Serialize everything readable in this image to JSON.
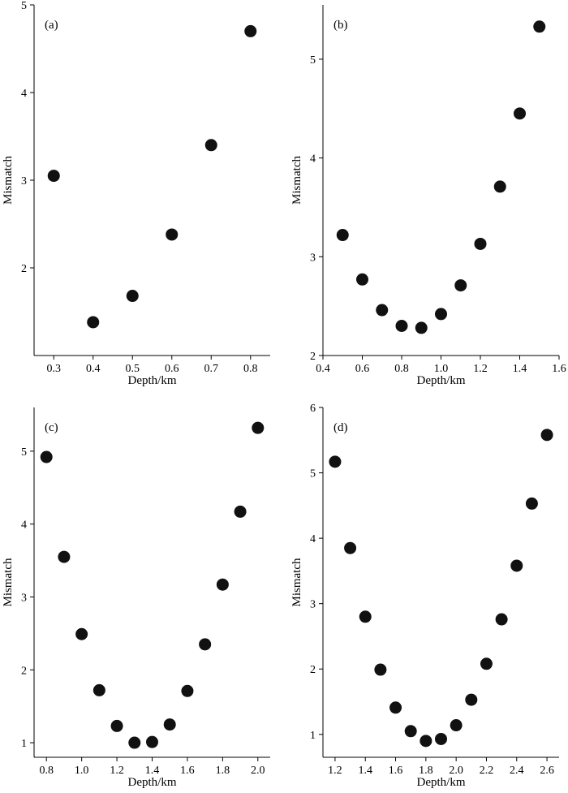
{
  "chart_data": [
    {
      "type": "scatter",
      "panel_label": "(a)",
      "xlabel": "Depth/km",
      "ylabel": "Mismatch",
      "xlim": [
        0.25,
        0.85
      ],
      "ylim": [
        1.0,
        5.0
      ],
      "xticks": [
        0.3,
        0.4,
        0.5,
        0.6,
        0.7,
        0.8
      ],
      "xtick_labels": [
        "0.3",
        "0.4",
        "0.5",
        "0.6",
        "0.7",
        "0.8"
      ],
      "yticks": [
        2,
        3,
        4,
        5
      ],
      "ytick_labels": [
        "2",
        "3",
        "4",
        "5"
      ],
      "x": [
        0.3,
        0.4,
        0.5,
        0.6,
        0.7,
        0.8
      ],
      "y": [
        3.05,
        1.38,
        1.68,
        2.38,
        3.4,
        4.7
      ],
      "marker_color": "#111111"
    },
    {
      "type": "scatter",
      "panel_label": "(b)",
      "xlabel": "Depth/km",
      "ylabel": "Mismatch",
      "xlim": [
        0.4,
        1.6
      ],
      "ylim": [
        2.0,
        5.55
      ],
      "xticks": [
        0.4,
        0.6,
        0.8,
        1.0,
        1.2,
        1.4,
        1.6
      ],
      "xtick_labels": [
        "0.4",
        "0.6",
        "0.8",
        "1.0",
        "1.2",
        "1.4",
        "1.6"
      ],
      "yticks": [
        2,
        3,
        4,
        5
      ],
      "ytick_labels": [
        "2",
        "3",
        "4",
        "5"
      ],
      "x": [
        0.5,
        0.6,
        0.7,
        0.8,
        0.9,
        1.0,
        1.1,
        1.2,
        1.3,
        1.4,
        1.5
      ],
      "y": [
        3.22,
        2.77,
        2.46,
        2.3,
        2.28,
        2.42,
        2.71,
        3.13,
        3.71,
        4.45,
        5.33
      ],
      "marker_color": "#111111"
    },
    {
      "type": "scatter",
      "panel_label": "(c)",
      "xlabel": "Depth/km",
      "ylabel": "Mismatch",
      "xlim": [
        0.73,
        2.07
      ],
      "ylim": [
        0.8,
        5.6
      ],
      "xticks": [
        0.8,
        1.0,
        1.2,
        1.4,
        1.6,
        1.8,
        2.0
      ],
      "xtick_labels": [
        "0.8",
        "1.0",
        "1.2",
        "1.4",
        "1.6",
        "1.8",
        "2.0"
      ],
      "yticks": [
        1,
        2,
        3,
        4,
        5
      ],
      "ytick_labels": [
        "1",
        "2",
        "3",
        "4",
        "5"
      ],
      "x": [
        0.8,
        0.9,
        1.0,
        1.1,
        1.2,
        1.3,
        1.4,
        1.5,
        1.6,
        1.7,
        1.8,
        1.9,
        2.0
      ],
      "y": [
        4.92,
        3.55,
        2.49,
        1.72,
        1.23,
        1.0,
        1.01,
        1.25,
        1.71,
        2.35,
        3.17,
        4.17,
        5.32
      ],
      "marker_color": "#111111"
    },
    {
      "type": "scatter",
      "panel_label": "(d)",
      "xlabel": "Depth/km",
      "ylabel": "Mismatch",
      "xlim": [
        1.12,
        2.68
      ],
      "ylim": [
        0.65,
        6.0
      ],
      "xticks": [
        1.2,
        1.4,
        1.6,
        1.8,
        2.0,
        2.2,
        2.4,
        2.6
      ],
      "xtick_labels": [
        "1.2",
        "1.4",
        "1.6",
        "1.8",
        "2.0",
        "2.2",
        "2.4",
        "2.6"
      ],
      "yticks": [
        1,
        2,
        3,
        4,
        5,
        6
      ],
      "ytick_labels": [
        "1",
        "2",
        "3",
        "4",
        "5",
        "6"
      ],
      "x": [
        1.2,
        1.3,
        1.4,
        1.5,
        1.6,
        1.7,
        1.8,
        1.9,
        2.0,
        2.1,
        2.2,
        2.3,
        2.4,
        2.5,
        2.6
      ],
      "y": [
        5.17,
        3.85,
        2.8,
        1.99,
        1.41,
        1.05,
        0.9,
        0.93,
        1.14,
        1.53,
        2.08,
        2.76,
        3.58,
        4.53,
        5.58
      ],
      "marker_color": "#111111"
    }
  ]
}
